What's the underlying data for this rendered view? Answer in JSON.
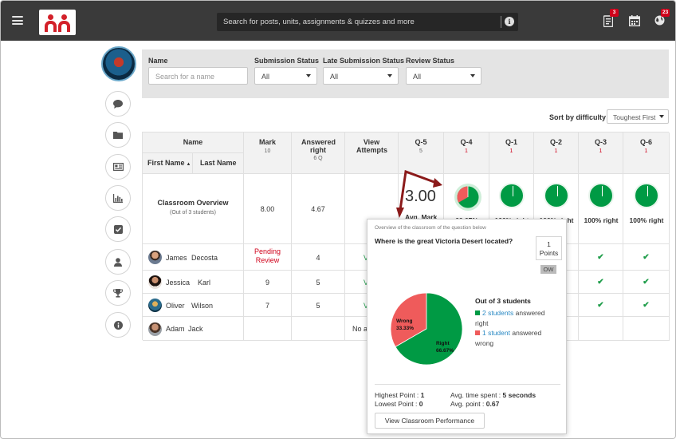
{
  "topbar": {
    "search_placeholder": "Search for posts, units, assignments & quizzes and more",
    "assignments_badge": "3",
    "notifications_badge": "23",
    "icons": [
      "menu-icon",
      "info-icon",
      "assignments-icon",
      "calendar-icon",
      "globe-icon"
    ]
  },
  "filters": {
    "name_label": "Name",
    "name_placeholder": "Search for a name",
    "submission_label": "Submission Status",
    "submission_value": "All",
    "late_label": "Late Submission Status",
    "late_value": "All",
    "review_label": "Review Status",
    "review_value": "All"
  },
  "sort": {
    "label": "Sort by difficulty",
    "value": "Toughest First"
  },
  "table": {
    "h_name": "Name",
    "h_first": "First Name",
    "h_last": "Last Name",
    "h_mark": "Mark",
    "h_mark_sub": "10",
    "h_answered": "Answered right",
    "h_answered_sub": "6 Q",
    "h_view": "View Attempts",
    "questions": [
      {
        "label": "Q-5",
        "sub": "5",
        "right": ""
      },
      {
        "label": "Q-4",
        "sub": "1",
        "right": "66.67%"
      },
      {
        "label": "Q-1",
        "sub": "1",
        "right": "100% right"
      },
      {
        "label": "Q-2",
        "sub": "1",
        "right": "100% right"
      },
      {
        "label": "Q-3",
        "sub": "1",
        "right": "100% right"
      },
      {
        "label": "Q-6",
        "sub": "1",
        "right": "100% right"
      }
    ],
    "overview_title": "Classroom Overview",
    "overview_sub": "(Out of 3 students)",
    "overview_mark": "8.00",
    "overview_answered": "4.67",
    "q5_avg": "3.00",
    "q5_avg_label": "Avg. Mark",
    "rows": [
      {
        "first": "James",
        "last": "Decosta",
        "mark": "Pending Review",
        "answered": "4",
        "view": "V"
      },
      {
        "first": "Jessica",
        "last": "Karl",
        "mark": "9",
        "answered": "5",
        "view": "V"
      },
      {
        "first": "Oliver",
        "last": "Wilson",
        "mark": "7",
        "answered": "5",
        "view": "V"
      },
      {
        "first": "Adam",
        "last": "Jack",
        "mark": "",
        "answered": "",
        "view": "No at"
      }
    ]
  },
  "popover": {
    "caption": "Overview of the classroom of the question below",
    "question": "Where is the great Victoria Desert located?",
    "points_value": "1",
    "points_label": "Points",
    "tag": "OW",
    "out_of": "Out of 3 students",
    "right_link": "2 students",
    "right_text": "answered right",
    "wrong_link": "1 student",
    "wrong_text": "answered wrong",
    "highest_label": "Highest Point :",
    "highest_value": "1",
    "lowest_label": "Lowest Point :",
    "lowest_value": "0",
    "avg_time_label": "Avg. time spent :",
    "avg_time_value": "5 seconds",
    "avg_point_label": "Avg. point :",
    "avg_point_value": "0.67",
    "button": "View Classroom Performance"
  },
  "chart_data": {
    "type": "pie",
    "categories": [
      "Right",
      "Wrong"
    ],
    "values": [
      66.67,
      33.33
    ],
    "labels": [
      "66.67%",
      "33.33%"
    ],
    "colors": [
      "#009a44",
      "#ef5b5b"
    ]
  }
}
